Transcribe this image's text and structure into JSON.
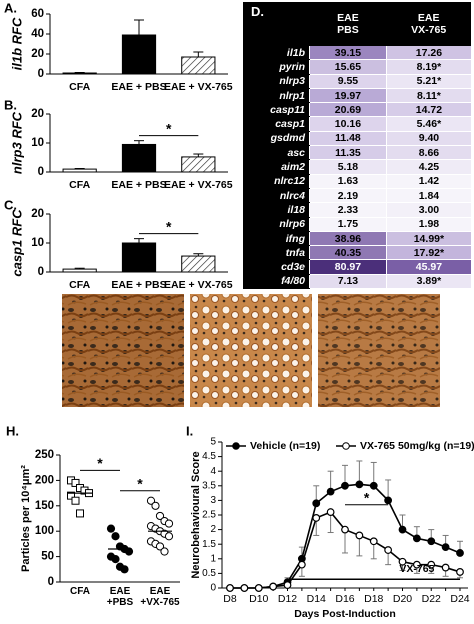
{
  "chart_data": [
    {
      "label": "A.",
      "type": "bar",
      "ylabel": "il1b RFC",
      "categories": [
        "CFA",
        "EAE + PBS",
        "EAE + VX-765"
      ],
      "values": [
        1,
        39,
        17
      ],
      "errors": [
        0.5,
        15,
        5
      ],
      "colors": [
        "#ffffff",
        "#000000",
        "#ffffff"
      ],
      "patterns": [
        "solid",
        "solid",
        "hatch"
      ],
      "ylim": [
        0,
        60
      ],
      "yticks": [
        0,
        20,
        40,
        60
      ]
    },
    {
      "label": "B.",
      "type": "bar",
      "ylabel": "nlrp3 RFC",
      "categories": [
        "CFA",
        "EAE + PBS",
        "EAE + VX-765"
      ],
      "values": [
        1,
        9.5,
        5.2
      ],
      "errors": [
        0.2,
        1.3,
        1
      ],
      "colors": [
        "#ffffff",
        "#000000",
        "#ffffff"
      ],
      "patterns": [
        "solid",
        "solid",
        "hatch"
      ],
      "ylim": [
        0,
        20
      ],
      "yticks": [
        0,
        10,
        20
      ],
      "annotation": "*"
    },
    {
      "label": "C.",
      "type": "bar",
      "ylabel": "casp1 RFC",
      "categories": [
        "CFA",
        "EAE + PBS",
        "EAE + VX-765"
      ],
      "values": [
        1,
        10,
        5.5
      ],
      "errors": [
        0.3,
        1.5,
        0.8
      ],
      "colors": [
        "#ffffff",
        "#000000",
        "#ffffff"
      ],
      "patterns": [
        "solid",
        "solid",
        "hatch"
      ],
      "ylim": [
        0,
        20
      ],
      "yticks": [
        0,
        10,
        20
      ],
      "annotation": "*"
    },
    {
      "label": "H.",
      "type": "dot",
      "ylabel": "Particles per 10⁴μm²",
      "categories": [
        "CFA",
        "EAE\n+PBS",
        "EAE\n+VX-765"
      ],
      "values": [
        [
          200,
          195,
          185,
          180,
          175,
          170,
          160,
          135
        ],
        [
          105,
          90,
          70,
          65,
          60,
          50,
          45,
          30,
          25
        ],
        [
          160,
          150,
          130,
          120,
          115,
          110,
          105,
          100,
          95,
          90,
          80,
          75,
          70,
          60
        ]
      ],
      "medians": [
        175,
        65,
        100
      ],
      "markers": [
        "square-open",
        "circle-filled",
        "circle-open"
      ],
      "ylim": [
        0,
        250
      ],
      "yticks": [
        0,
        50,
        100,
        150,
        200,
        250
      ],
      "annotations": [
        "*",
        "*"
      ]
    },
    {
      "label": "I.",
      "type": "line",
      "ylabel": "Neurobehavioural Score",
      "xlabel": "Days Post-Induction",
      "categories": [
        "D8",
        null,
        "D10",
        null,
        "D12",
        null,
        "D14",
        null,
        "D16",
        null,
        "D18",
        null,
        "D20",
        null,
        "D22",
        null,
        "D24"
      ],
      "series": [
        {
          "name": "Vehicle (n=19)",
          "color": "#000000",
          "marker": "filled",
          "error_side": "up",
          "values": [
            0,
            0,
            0,
            0.05,
            0.2,
            1.0,
            2.9,
            3.3,
            3.5,
            3.55,
            3.5,
            3.0,
            2.0,
            1.7,
            1.6,
            1.4,
            1.2
          ],
          "errors": [
            0,
            0,
            0,
            0.05,
            0.15,
            0.4,
            0.6,
            0.7,
            0.7,
            0.8,
            0.8,
            0.7,
            0.5,
            0.4,
            0.4,
            0.4,
            0.4
          ]
        },
        {
          "name": "VX-765 50mg/kg (n=19)",
          "color": "#000000",
          "marker": "open",
          "error_side": "down",
          "values": [
            0,
            0,
            0,
            0.05,
            0.1,
            0.8,
            2.4,
            2.6,
            2.0,
            1.8,
            1.6,
            1.3,
            0.9,
            0.8,
            0.8,
            0.7,
            0.55
          ],
          "errors": [
            0,
            0,
            0,
            0.05,
            0.1,
            0.4,
            0.6,
            0.7,
            0.8,
            0.7,
            0.6,
            0.5,
            0.3,
            0.3,
            0.3,
            0.3,
            0.2
          ]
        }
      ],
      "ylim": [
        0,
        5
      ],
      "yticks": [
        0,
        0.5,
        1,
        1.5,
        2,
        2.5,
        3,
        3.5,
        4,
        4.5,
        5
      ],
      "legend": "top",
      "annotations": [
        "*",
        "VX-765"
      ]
    }
  ],
  "table": {
    "label": "D.",
    "columns": [
      "EAE\nPBS",
      "EAE\nVX-765"
    ],
    "rows": [
      {
        "gene": "il1b",
        "values": [
          "39.15",
          "17.26"
        ],
        "colors": [
          "#9b86bf",
          "#cfc3e3"
        ]
      },
      {
        "gene": "pyrin",
        "values": [
          "15.65",
          "8.19*"
        ],
        "colors": [
          "#cbbfe0",
          "#e3dcef"
        ]
      },
      {
        "gene": "nlrp3",
        "values": [
          "9.55",
          "5.21*"
        ],
        "colors": [
          "#ddd4ec",
          "#ebe6f4"
        ]
      },
      {
        "gene": "nlrp1",
        "values": [
          "19.97",
          "8.11*"
        ],
        "colors": [
          "#b9aad6",
          "#e3dcef"
        ]
      },
      {
        "gene": "casp11",
        "values": [
          "20.69",
          "14.72"
        ],
        "colors": [
          "#b9aad6",
          "#d6cce8"
        ]
      },
      {
        "gene": "casp1",
        "values": [
          "10.16",
          "5.46*"
        ],
        "colors": [
          "#ddd4ec",
          "#ebe6f4"
        ]
      },
      {
        "gene": "gsdmd",
        "values": [
          "11.48",
          "9.40"
        ],
        "colors": [
          "#d6cce8",
          "#e3dcef"
        ]
      },
      {
        "gene": "asc",
        "values": [
          "11.35",
          "8.66"
        ],
        "colors": [
          "#d6cce8",
          "#e3dcef"
        ]
      },
      {
        "gene": "aim2",
        "values": [
          "5.18",
          "4.25"
        ],
        "colors": [
          "#ebe6f4",
          "#efebf6"
        ]
      },
      {
        "gene": "nlrc12",
        "values": [
          "1.63",
          "1.42"
        ],
        "colors": [
          "#f6f4fa",
          "#f6f4fa"
        ]
      },
      {
        "gene": "nlrc4",
        "values": [
          "2.19",
          "1.84"
        ],
        "colors": [
          "#f6f4fa",
          "#f6f4fa"
        ]
      },
      {
        "gene": "il18",
        "values": [
          "2.33",
          "3.00"
        ],
        "colors": [
          "#f6f4fa",
          "#f3f0f8"
        ]
      },
      {
        "gene": "nlrp6",
        "values": [
          "1.75",
          "1.98"
        ],
        "colors": [
          "#f6f4fa",
          "#f6f4fa"
        ]
      },
      {
        "gene": "ifng",
        "values": [
          "38.96",
          "14.99*"
        ],
        "colors": [
          "#8f78b3",
          "#cbbfe0"
        ]
      },
      {
        "gene": "tnfa",
        "values": [
          "40.35",
          "17.92*"
        ],
        "colors": [
          "#8f78b3",
          "#c3b5dc"
        ]
      },
      {
        "gene": "cd3e",
        "values": [
          "80.97",
          "45.97"
        ],
        "colors": [
          "#4b2f7a",
          "#7a5fa6"
        ]
      },
      {
        "gene": "f4/80",
        "values": [
          "7.13",
          "3.89*"
        ],
        "colors": [
          "#e3dcef",
          "#ebe6f4"
        ]
      }
    ]
  }
}
